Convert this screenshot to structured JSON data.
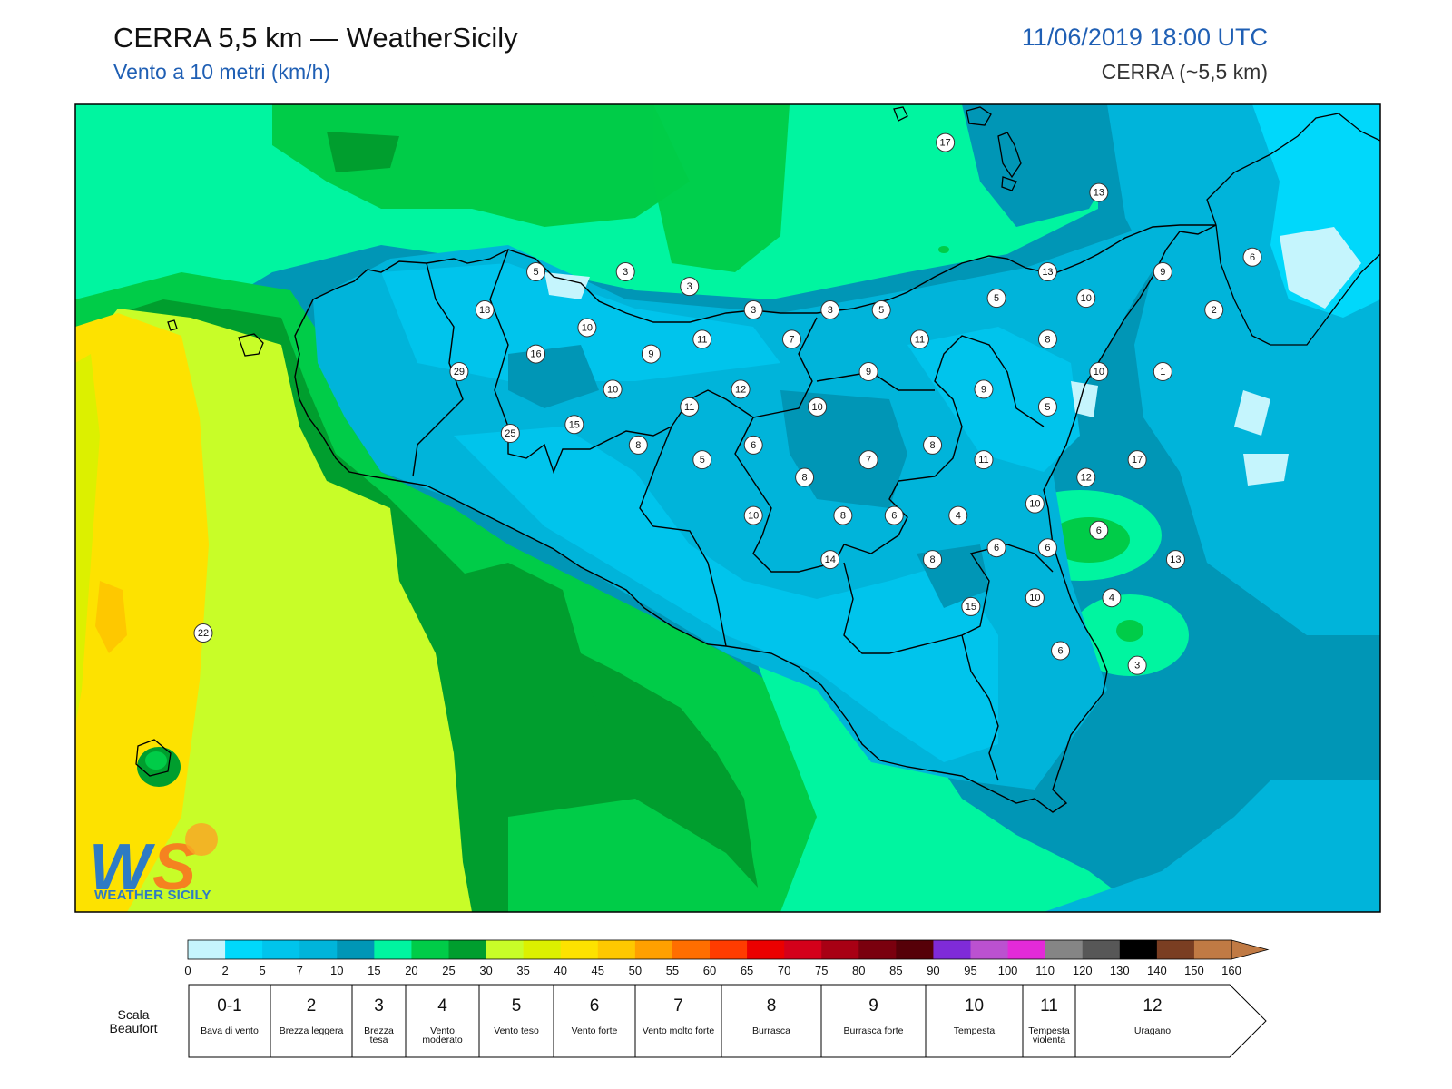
{
  "header": {
    "title": "CERRA 5,5 km — WeatherSicily",
    "subtitle": "Vento a 10 metri (km/h)",
    "datetime": "11/06/2019 18:00 UTC",
    "model": "CERRA (~5,5 km)"
  },
  "logo": {
    "mark": "WS",
    "name": "WEATHER SICILY"
  },
  "stations": [
    {
      "v": "17",
      "lon": 14.9,
      "lat": 38.87
    },
    {
      "v": "13",
      "lon": 15.5,
      "lat": 38.7
    },
    {
      "v": "5",
      "lon": 13.3,
      "lat": 38.43
    },
    {
      "v": "3",
      "lon": 13.65,
      "lat": 38.43
    },
    {
      "v": "3",
      "lon": 13.9,
      "lat": 38.38
    },
    {
      "v": "13",
      "lon": 15.3,
      "lat": 38.43
    },
    {
      "v": "9",
      "lon": 15.75,
      "lat": 38.43
    },
    {
      "v": "6",
      "lon": 16.1,
      "lat": 38.48
    },
    {
      "v": "18",
      "lon": 13.1,
      "lat": 38.3
    },
    {
      "v": "3",
      "lon": 14.15,
      "lat": 38.3
    },
    {
      "v": "3",
      "lon": 14.45,
      "lat": 38.3
    },
    {
      "v": "5",
      "lon": 14.65,
      "lat": 38.3
    },
    {
      "v": "5",
      "lon": 15.1,
      "lat": 38.34
    },
    {
      "v": "10",
      "lon": 15.45,
      "lat": 38.34
    },
    {
      "v": "2",
      "lon": 15.95,
      "lat": 38.3
    },
    {
      "v": "10",
      "lon": 13.5,
      "lat": 38.24
    },
    {
      "v": "11",
      "lon": 13.95,
      "lat": 38.2
    },
    {
      "v": "7",
      "lon": 14.3,
      "lat": 38.2
    },
    {
      "v": "11",
      "lon": 14.8,
      "lat": 38.2
    },
    {
      "v": "8",
      "lon": 15.3,
      "lat": 38.2
    },
    {
      "v": "16",
      "lon": 13.3,
      "lat": 38.15
    },
    {
      "v": "9",
      "lon": 13.75,
      "lat": 38.15
    },
    {
      "v": "29",
      "lon": 13.0,
      "lat": 38.09
    },
    {
      "v": "9",
      "lon": 14.6,
      "lat": 38.09
    },
    {
      "v": "10",
      "lon": 15.5,
      "lat": 38.09
    },
    {
      "v": "1",
      "lon": 15.75,
      "lat": 38.09
    },
    {
      "v": "10",
      "lon": 13.6,
      "lat": 38.03
    },
    {
      "v": "12",
      "lon": 14.1,
      "lat": 38.03
    },
    {
      "v": "9",
      "lon": 15.05,
      "lat": 38.03
    },
    {
      "v": "11",
      "lon": 13.9,
      "lat": 37.97
    },
    {
      "v": "10",
      "lon": 14.4,
      "lat": 37.97
    },
    {
      "v": "5",
      "lon": 15.3,
      "lat": 37.97
    },
    {
      "v": "15",
      "lon": 13.45,
      "lat": 37.91
    },
    {
      "v": "25",
      "lon": 13.2,
      "lat": 37.88
    },
    {
      "v": "8",
      "lon": 13.7,
      "lat": 37.84
    },
    {
      "v": "6",
      "lon": 14.15,
      "lat": 37.84
    },
    {
      "v": "8",
      "lon": 14.85,
      "lat": 37.84
    },
    {
      "v": "5",
      "lon": 13.95,
      "lat": 37.79
    },
    {
      "v": "7",
      "lon": 14.6,
      "lat": 37.79
    },
    {
      "v": "11",
      "lon": 15.05,
      "lat": 37.79
    },
    {
      "v": "17",
      "lon": 15.65,
      "lat": 37.79
    },
    {
      "v": "8",
      "lon": 14.35,
      "lat": 37.73
    },
    {
      "v": "12",
      "lon": 15.45,
      "lat": 37.73
    },
    {
      "v": "10",
      "lon": 15.25,
      "lat": 37.64
    },
    {
      "v": "10",
      "lon": 14.15,
      "lat": 37.6
    },
    {
      "v": "8",
      "lon": 14.5,
      "lat": 37.6
    },
    {
      "v": "6",
      "lon": 14.7,
      "lat": 37.6
    },
    {
      "v": "4",
      "lon": 14.95,
      "lat": 37.6
    },
    {
      "v": "6",
      "lon": 15.5,
      "lat": 37.55
    },
    {
      "v": "6",
      "lon": 15.1,
      "lat": 37.49
    },
    {
      "v": "6",
      "lon": 15.3,
      "lat": 37.49
    },
    {
      "v": "14",
      "lon": 14.45,
      "lat": 37.45
    },
    {
      "v": "8",
      "lon": 14.85,
      "lat": 37.45
    },
    {
      "v": "13",
      "lon": 15.8,
      "lat": 37.45
    },
    {
      "v": "15",
      "lon": 15.0,
      "lat": 37.29
    },
    {
      "v": "10",
      "lon": 15.25,
      "lat": 37.32
    },
    {
      "v": "4",
      "lon": 15.55,
      "lat": 37.32
    },
    {
      "v": "22",
      "lon": 12.0,
      "lat": 37.2
    },
    {
      "v": "6",
      "lon": 15.35,
      "lat": 37.14
    },
    {
      "v": "3",
      "lon": 15.65,
      "lat": 37.09
    }
  ],
  "colorbar": {
    "ticks": [
      "0",
      "2",
      "5",
      "7",
      "10",
      "15",
      "20",
      "25",
      "30",
      "35",
      "40",
      "45",
      "50",
      "55",
      "60",
      "65",
      "70",
      "75",
      "80",
      "85",
      "90",
      "95",
      "100",
      "110",
      "120",
      "130",
      "140",
      "150",
      "160"
    ],
    "colors": [
      "#c5f5fd",
      "#00d8fb",
      "#00c4ec",
      "#00b4da",
      "#0096b6",
      "#00f5a0",
      "#00cc48",
      "#009e2e",
      "#c8fd28",
      "#dcf000",
      "#fde200",
      "#fec800",
      "#ffa000",
      "#ff6e00",
      "#ff3c00",
      "#eb0000",
      "#d4001a",
      "#a80014",
      "#7a000e",
      "#560008",
      "#7f2bd8",
      "#bb51d0",
      "#e32ad8",
      "#858585",
      "#575757",
      "#000000",
      "#7a3e22",
      "#c07a44"
    ]
  },
  "beaufort": {
    "title": "Scala Beaufort",
    "classes": [
      {
        "n": "0-1",
        "d": "Bava di vento"
      },
      {
        "n": "2",
        "d": "Brezza leggera"
      },
      {
        "n": "3",
        "d": "Brezza tesa"
      },
      {
        "n": "4",
        "d": "Vento moderato"
      },
      {
        "n": "5",
        "d": "Vento teso"
      },
      {
        "n": "6",
        "d": "Vento forte"
      },
      {
        "n": "7",
        "d": "Vento molto forte"
      },
      {
        "n": "8",
        "d": "Burrasca"
      },
      {
        "n": "9",
        "d": "Burrasca forte"
      },
      {
        "n": "10",
        "d": "Tempesta"
      },
      {
        "n": "11",
        "d": "Tempesta violenta"
      },
      {
        "n": "12",
        "d": "Uragano"
      }
    ]
  }
}
